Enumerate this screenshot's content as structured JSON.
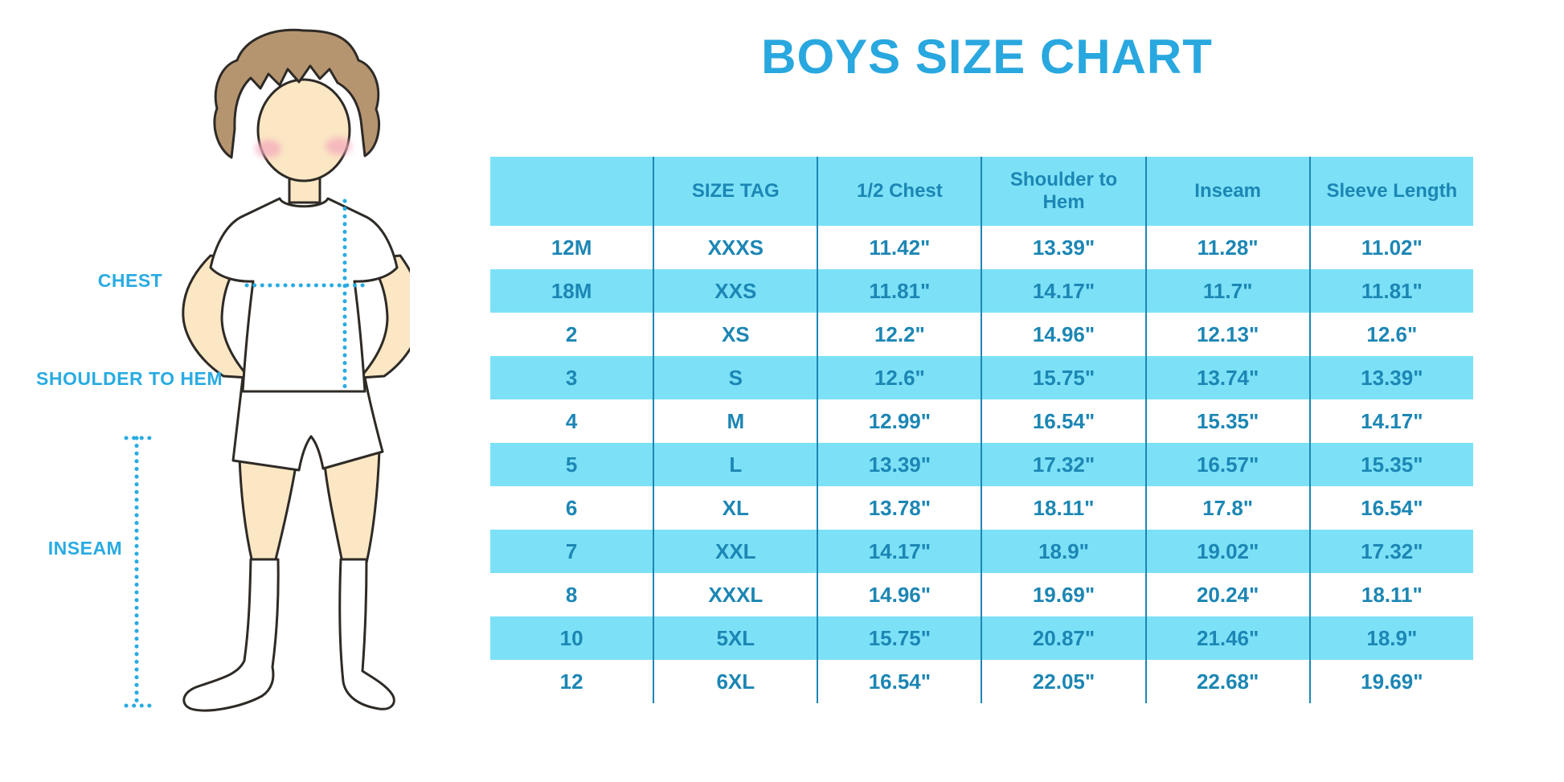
{
  "page": {
    "title": "BOYS SIZE CHART"
  },
  "figure_labels": {
    "chest": "CHEST",
    "shoulder_to_hem": "SHOULDER TO HEM",
    "inseam": "INSEAM"
  },
  "colors": {
    "title_blue": "#29A7DF",
    "label_blue": "#29ABE2",
    "band_blue": "#7CE1F7",
    "table_text_blue": "#1C86B4",
    "grid_line_blue": "#1C86B4",
    "dotted_line_blue": "#29ABE2",
    "skin": "#FBE7C4",
    "hair_brown": "#B59570",
    "cheek_pink": "#F4A9BC",
    "outline": "#2E2A26"
  },
  "chart_data": {
    "type": "table",
    "title": "BOYS SIZE CHART",
    "columns": [
      "",
      "SIZE TAG",
      "1/2 Chest",
      "Shoulder to Hem",
      "Inseam",
      "Sleeve Length"
    ],
    "rows": [
      [
        "12M",
        "XXXS",
        "11.42\"",
        "13.39\"",
        "11.28\"",
        "11.02\""
      ],
      [
        "18M",
        "XXS",
        "11.81\"",
        "14.17\"",
        "11.7\"",
        "11.81\""
      ],
      [
        "2",
        "XS",
        "12.2\"",
        "14.96\"",
        "12.13\"",
        "12.6\""
      ],
      [
        "3",
        "S",
        "12.6\"",
        "15.75\"",
        "13.74\"",
        "13.39\""
      ],
      [
        "4",
        "M",
        "12.99\"",
        "16.54\"",
        "15.35\"",
        "14.17\""
      ],
      [
        "5",
        "L",
        "13.39\"",
        "17.32\"",
        "16.57\"",
        "15.35\""
      ],
      [
        "6",
        "XL",
        "13.78\"",
        "18.11\"",
        "17.8\"",
        "16.54\""
      ],
      [
        "7",
        "XXL",
        "14.17\"",
        "18.9\"",
        "19.02\"",
        "17.32\""
      ],
      [
        "8",
        "XXXL",
        "14.96\"",
        "19.69\"",
        "20.24\"",
        "18.11\""
      ],
      [
        "10",
        "5XL",
        "15.75\"",
        "20.87\"",
        "21.46\"",
        "18.9\""
      ],
      [
        "12",
        "6XL",
        "16.54\"",
        "22.05\"",
        "22.68\"",
        "19.69\""
      ]
    ],
    "striped_rows": "alternating light blue bands starting at second data row",
    "legend_position": "none",
    "grid": "vertical column separators only"
  }
}
